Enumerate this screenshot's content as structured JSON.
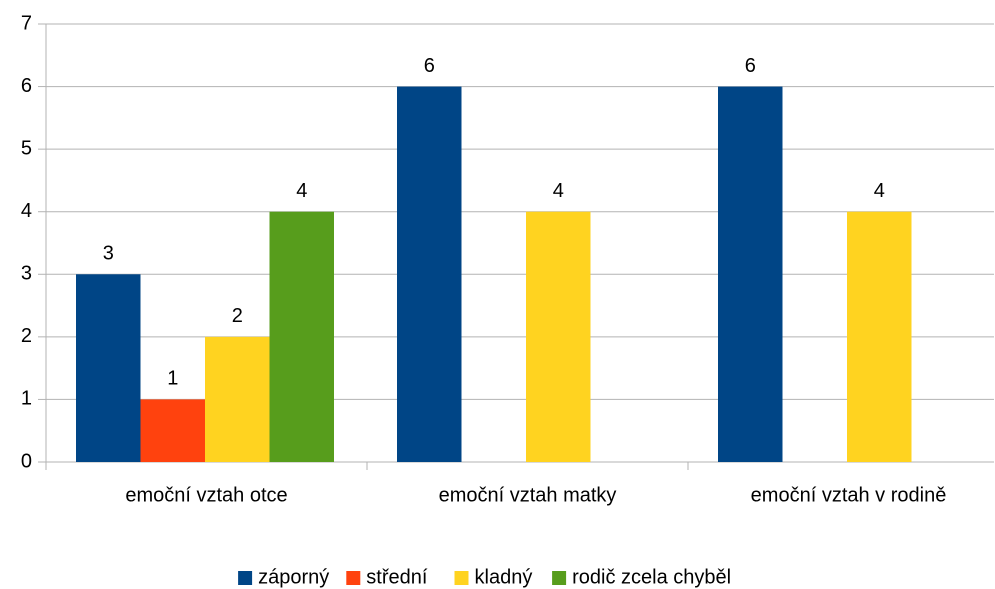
{
  "chart_data": {
    "type": "bar",
    "categories": [
      "emoční vztah otce",
      "emoční vztah matky",
      "emoční vztah v rodině"
    ],
    "series": [
      {
        "name": "záporný",
        "color": "#004586",
        "values": [
          3,
          6,
          6
        ]
      },
      {
        "name": "střední",
        "color": "#ff420e",
        "values": [
          1,
          null,
          null
        ]
      },
      {
        "name": "kladný",
        "color": "#ffd320",
        "values": [
          2,
          4,
          4
        ]
      },
      {
        "name": "rodič zcela chyběl",
        "color": "#579d1c",
        "values": [
          4,
          null,
          null
        ]
      }
    ],
    "ylim": [
      0,
      7
    ],
    "yticks": [
      0,
      1,
      2,
      3,
      4,
      5,
      6,
      7
    ],
    "grid": true,
    "legend": "bottom"
  }
}
